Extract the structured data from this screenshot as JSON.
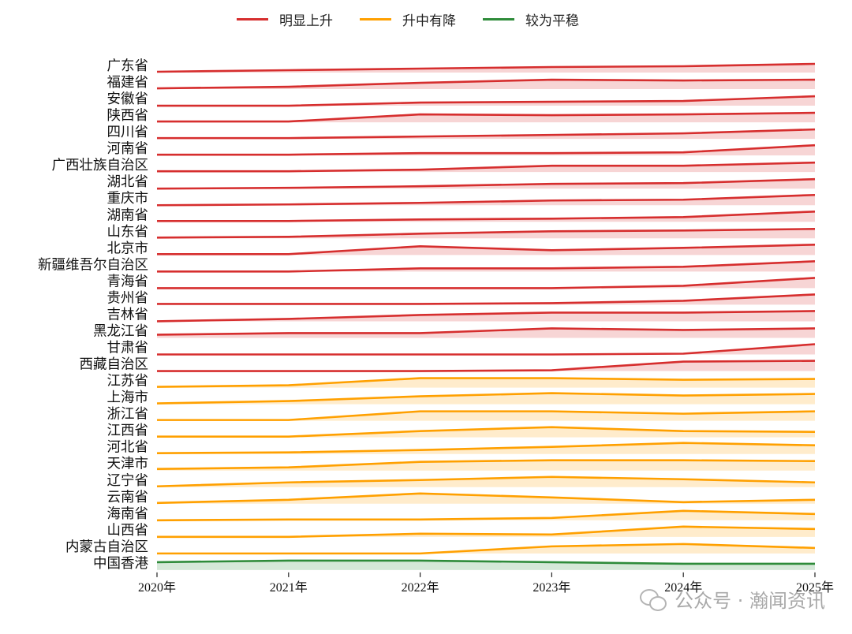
{
  "chart_data": {
    "type": "ridgeline",
    "title": "",
    "xlabel": "",
    "ylabel": "",
    "x": [
      "2020年",
      "2021年",
      "2022年",
      "2023年",
      "2024年",
      "2025年"
    ],
    "value_unit": "relative index (height above row baseline)",
    "ylim_per_row": [
      0,
      14
    ],
    "legend": [
      {
        "name": "明显上升",
        "color": "#d62e2e"
      },
      {
        "name": "升中有降",
        "color": "#ffa000"
      },
      {
        "name": "较为平稳",
        "color": "#2e8b3a"
      }
    ],
    "legend_placement": "top-center",
    "series": [
      {
        "name": "广东省",
        "group": 0,
        "values": [
          1,
          3,
          5,
          7,
          8,
          11
        ]
      },
      {
        "name": "福建省",
        "group": 0,
        "values": [
          1,
          3,
          8,
          12,
          11,
          12
        ]
      },
      {
        "name": "安徽省",
        "group": 0,
        "values": [
          0,
          0,
          4,
          5,
          6,
          12
        ]
      },
      {
        "name": "陕西省",
        "group": 0,
        "values": [
          1,
          1,
          10,
          9,
          10,
          12
        ]
      },
      {
        "name": "四川省",
        "group": 0,
        "values": [
          1,
          1,
          3,
          5,
          7,
          12
        ]
      },
      {
        "name": "河南省",
        "group": 0,
        "values": [
          1,
          1,
          3,
          3,
          4,
          13
        ]
      },
      {
        "name": "广西壮族自治区",
        "group": 0,
        "values": [
          1,
          1,
          3,
          8,
          8,
          12
        ]
      },
      {
        "name": "湖北省",
        "group": 0,
        "values": [
          0,
          1,
          3,
          6,
          7,
          12
        ]
      },
      {
        "name": "重庆市",
        "group": 0,
        "values": [
          0,
          1,
          3,
          6,
          7,
          13
        ]
      },
      {
        "name": "湖南省",
        "group": 0,
        "values": [
          1,
          1,
          3,
          4,
          6,
          13
        ]
      },
      {
        "name": "山东省",
        "group": 0,
        "values": [
          1,
          2,
          6,
          9,
          10,
          12
        ]
      },
      {
        "name": "北京市",
        "group": 0,
        "values": [
          1,
          1,
          11,
          6,
          9,
          13
        ]
      },
      {
        "name": "新疆维吾尔自治区",
        "group": 0,
        "values": [
          0,
          0,
          4,
          4,
          6,
          13
        ]
      },
      {
        "name": "青海省",
        "group": 0,
        "values": [
          0,
          0,
          0,
          0,
          3,
          13
        ]
      },
      {
        "name": "贵州省",
        "group": 0,
        "values": [
          1,
          1,
          1,
          2,
          5,
          13
        ]
      },
      {
        "name": "吉林省",
        "group": 0,
        "values": [
          0,
          3,
          8,
          11,
          11,
          13
        ]
      },
      {
        "name": "黑龙江省",
        "group": 0,
        "values": [
          4,
          6,
          6,
          12,
          10,
          12
        ]
      },
      {
        "name": "甘肃省",
        "group": 0,
        "values": [
          0,
          0,
          0,
          0,
          1,
          13
        ]
      },
      {
        "name": "西藏自治区",
        "group": 0,
        "values": [
          0,
          0,
          0,
          1,
          12,
          13
        ]
      },
      {
        "name": "江苏省",
        "group": 1,
        "values": [
          1,
          3,
          12,
          12,
          10,
          11
        ]
      },
      {
        "name": "上海市",
        "group": 1,
        "values": [
          1,
          4,
          10,
          14,
          11,
          13
        ]
      },
      {
        "name": "浙江省",
        "group": 1,
        "values": [
          1,
          1,
          12,
          12,
          9,
          12
        ]
      },
      {
        "name": "江西省",
        "group": 1,
        "values": [
          1,
          1,
          8,
          13,
          8,
          7
        ]
      },
      {
        "name": "河北省",
        "group": 1,
        "values": [
          1,
          2,
          5,
          9,
          14,
          11
        ]
      },
      {
        "name": "天津市",
        "group": 1,
        "values": [
          2,
          4,
          11,
          13,
          13,
          12
        ]
      },
      {
        "name": "辽宁省",
        "group": 1,
        "values": [
          1,
          6,
          9,
          13,
          10,
          6
        ]
      },
      {
        "name": "云南省",
        "group": 1,
        "values": [
          1,
          5,
          13,
          8,
          2,
          5
        ]
      },
      {
        "name": "海南省",
        "group": 1,
        "values": [
          0,
          1,
          1,
          3,
          12,
          8
        ]
      },
      {
        "name": "山西省",
        "group": 1,
        "values": [
          0,
          0,
          4,
          3,
          13,
          10
        ]
      },
      {
        "name": "内蒙古自治区",
        "group": 1,
        "values": [
          0,
          0,
          0,
          9,
          12,
          7
        ]
      },
      {
        "name": "中国香港",
        "group": 2,
        "values": [
          10,
          12,
          12,
          10,
          8,
          8
        ]
      }
    ]
  },
  "watermark": "公众号 · 瀚闻资讯"
}
